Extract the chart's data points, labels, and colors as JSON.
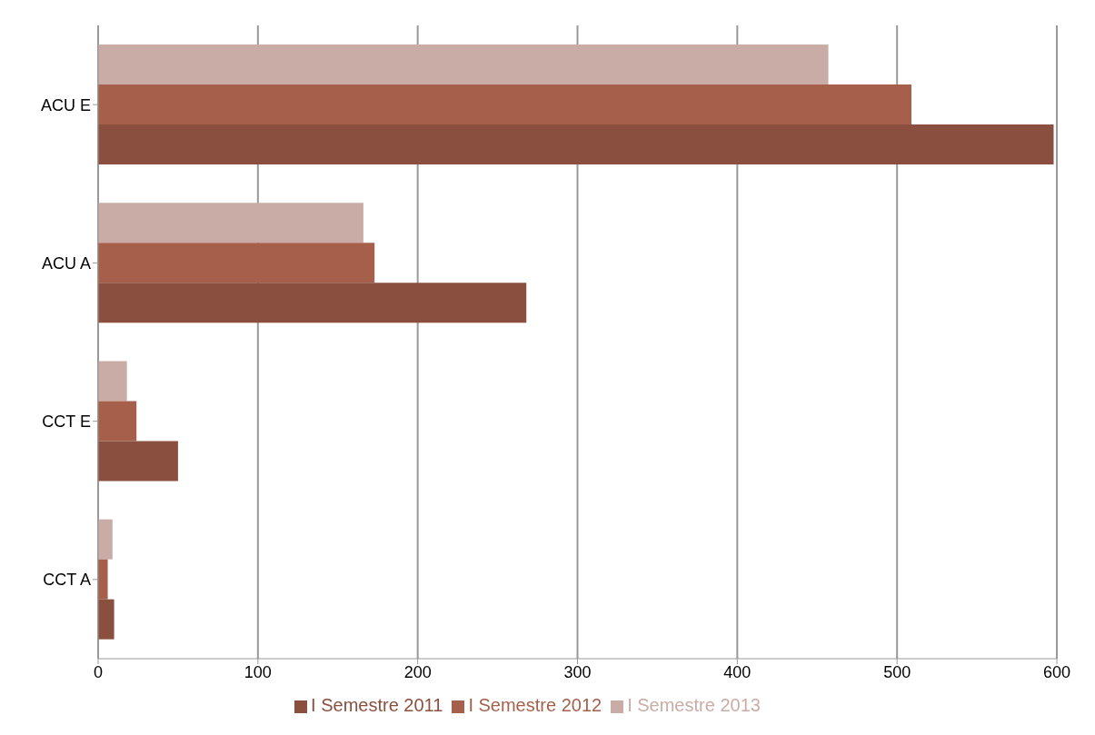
{
  "chart_data": {
    "type": "bar",
    "orientation": "horizontal",
    "categories": [
      "ACU E",
      "ACU A",
      "CCT E",
      "CCT A"
    ],
    "series": [
      {
        "name": "I Semestre 2013",
        "color": "#c9aca6",
        "values": [
          457,
          166,
          18,
          9
        ]
      },
      {
        "name": "I Semestre 2012",
        "color": "#a65f4a",
        "values": [
          509,
          173,
          24,
          6
        ]
      },
      {
        "name": "I Semestre 2011",
        "color": "#8a4f3e",
        "values": [
          598,
          268,
          50,
          10
        ]
      }
    ],
    "xlim": [
      0,
      600
    ],
    "xticks": [
      0,
      100,
      200,
      300,
      400,
      500,
      600
    ],
    "grid": "x",
    "legend": "bottom"
  }
}
